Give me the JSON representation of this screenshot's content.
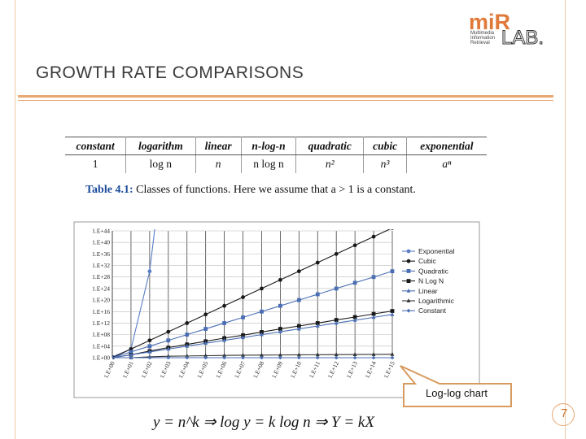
{
  "slide": {
    "title": "GROWTH RATE COMPARISONS",
    "page_number": "7",
    "callout": "Log-log chart",
    "formula": "y = n^k ⇒ log y = k log n ⇒ Y = kX",
    "accent_color": "#e8a872"
  },
  "logo": {
    "text_mir": "miR",
    "text_lab": "LAB.",
    "lines": [
      "Multimedia",
      "Information",
      "Retrieval"
    ]
  },
  "table": {
    "headers": [
      "constant",
      "logarithm",
      "linear",
      "n-log-n",
      "quadratic",
      "cubic",
      "exponential"
    ],
    "row": [
      "1",
      "log n",
      "n",
      "n log n",
      "n²",
      "n³",
      "aⁿ"
    ]
  },
  "caption": {
    "label": "Table 4.1:",
    "text": "Classes of functions. Here we assume that a > 1 is a constant."
  },
  "chart_data": {
    "type": "line",
    "x_tick_labels": [
      "1.E+00",
      "1.E+01",
      "1.E+02",
      "1.E+03",
      "1.E+04",
      "1.E+05",
      "1.E+06",
      "1.E+07",
      "1.E+08",
      "1.E+09",
      "1.E+10",
      "1.E+11",
      "1.E+12",
      "1.E+13",
      "1.E+14",
      "1.E+15"
    ],
    "y_tick_labels": [
      "1.E+00",
      "1.E+04",
      "1.E+08",
      "1.E+12",
      "1.E+16",
      "1.E+20",
      "1.E+24",
      "1.E+28",
      "1.E+32",
      "1.E+36",
      "1.E+40",
      "1.E+44"
    ],
    "log_x": true,
    "log_y": true,
    "x_exp": [
      0,
      15
    ],
    "y_exp": [
      0,
      44
    ],
    "grid": true,
    "legend_position": "right",
    "series": [
      {
        "name": "Exponential",
        "color": "#5a7ec6",
        "marker": "circle",
        "x_exp": [
          0,
          1,
          2,
          2.3
        ],
        "y_exp": [
          0.3,
          3,
          30,
          46
        ]
      },
      {
        "name": "Cubic",
        "color": "#1a1a1a",
        "marker": "circle",
        "x_exp": [
          0,
          1,
          2,
          3,
          4,
          5,
          6,
          7,
          8,
          9,
          10,
          11,
          12,
          13,
          14,
          15
        ],
        "y_exp": [
          0,
          3,
          6,
          9,
          12,
          15,
          18,
          21,
          24,
          27,
          30,
          33,
          36,
          39,
          42,
          45
        ]
      },
      {
        "name": "Quadratic",
        "color": "#4a6fb5",
        "marker": "square",
        "x_exp": [
          0,
          1,
          2,
          3,
          4,
          5,
          6,
          7,
          8,
          9,
          10,
          11,
          12,
          13,
          14,
          15
        ],
        "y_exp": [
          0,
          2,
          4,
          6,
          8,
          10,
          12,
          14,
          16,
          18,
          20,
          22,
          24,
          26,
          28,
          30
        ]
      },
      {
        "name": "N Log N",
        "color": "#1a1a1a",
        "marker": "square",
        "x_exp": [
          0,
          1,
          2,
          3,
          4,
          5,
          6,
          7,
          8,
          9,
          10,
          11,
          12,
          13,
          14,
          15
        ],
        "y_exp": [
          0,
          1,
          2.3,
          3.5,
          4.6,
          5.7,
          6.8,
          7.8,
          8.9,
          10,
          11,
          12,
          13.1,
          14.1,
          15.2,
          16.2
        ]
      },
      {
        "name": "Linear",
        "color": "#4a6fb5",
        "marker": "triangle",
        "x_exp": [
          0,
          1,
          2,
          3,
          4,
          5,
          6,
          7,
          8,
          9,
          10,
          11,
          12,
          13,
          14,
          15
        ],
        "y_exp": [
          0,
          1,
          2,
          3,
          4,
          5,
          6,
          7,
          8,
          9,
          10,
          11,
          12,
          13,
          14,
          15
        ]
      },
      {
        "name": "Logarithmic",
        "color": "#333333",
        "marker": "triangle",
        "x_exp": [
          0,
          1,
          2,
          3,
          4,
          5,
          6,
          7,
          8,
          9,
          10,
          11,
          12,
          13,
          14,
          15
        ],
        "y_exp": [
          0,
          0,
          0.3,
          0.5,
          0.6,
          0.7,
          0.8,
          0.85,
          0.9,
          0.95,
          1,
          1.04,
          1.08,
          1.11,
          1.15,
          1.18
        ]
      },
      {
        "name": "Constant",
        "color": "#4a6fb5",
        "marker": "diamond",
        "x_exp": [
          0,
          1,
          2,
          3,
          4,
          5,
          6,
          7,
          8,
          9,
          10,
          11,
          12,
          13,
          14,
          15
        ],
        "y_exp": [
          0,
          0,
          0,
          0,
          0,
          0,
          0,
          0,
          0,
          0,
          0,
          0,
          0,
          0,
          0,
          0
        ]
      }
    ]
  }
}
